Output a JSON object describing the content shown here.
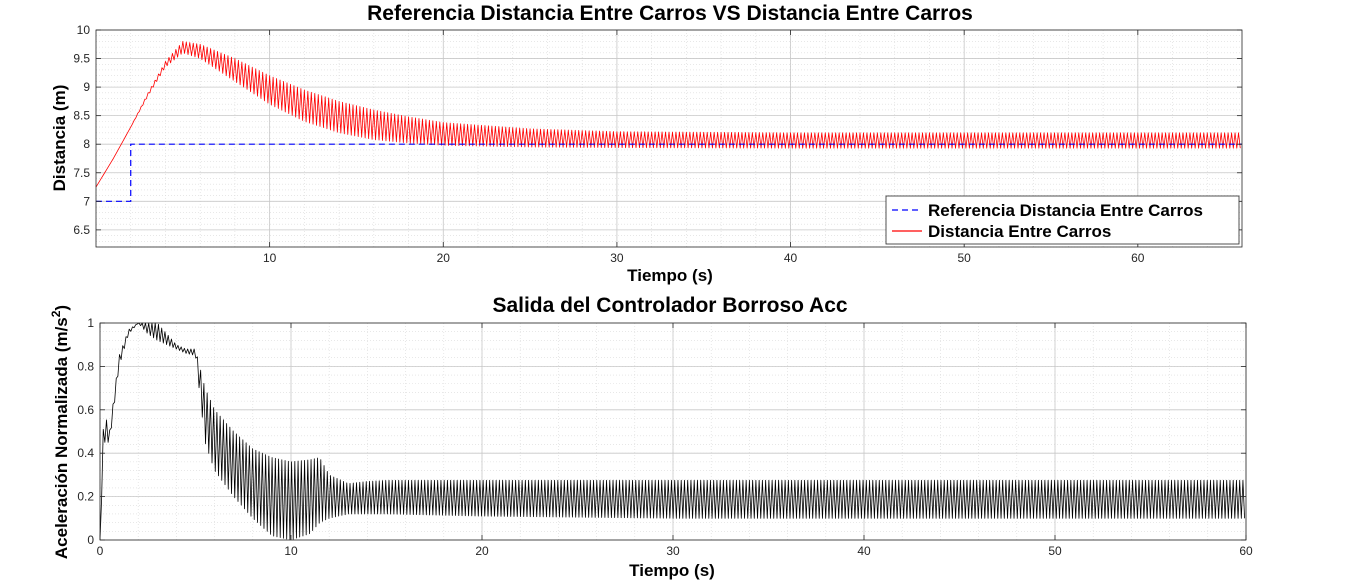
{
  "chart_data": [
    {
      "type": "line",
      "title": "Referencia Distancia Entre Carros VS Distancia Entre Carros",
      "xlabel": "Tiempo (s)",
      "ylabel": "Distancia (m)",
      "xlim": [
        0,
        66
      ],
      "ylim": [
        6.2,
        10
      ],
      "xticks": [
        10,
        20,
        30,
        40,
        50,
        60
      ],
      "yticks": [
        6.5,
        7,
        7.5,
        8,
        8.5,
        9,
        9.5,
        10
      ],
      "xtick_labels": [
        "10",
        "20",
        "30",
        "40",
        "50",
        "60"
      ],
      "ytick_labels": [
        "6.5",
        "7",
        "7.5",
        "8",
        "8.5",
        "9",
        "9.5",
        "10"
      ],
      "grid": true,
      "minor_grid": true,
      "legend": "bottom-right",
      "series": [
        {
          "name": "Referencia Distancia Entre Carros",
          "color": "#0000ff",
          "style": "dashed",
          "x": [
            0,
            2,
            2,
            66
          ],
          "y": [
            7,
            7,
            8,
            8
          ]
        },
        {
          "name": "Distancia Entre Carros",
          "color": "#ff0000",
          "style": "solid-oscillating",
          "x": [
            0,
            1,
            2,
            3,
            4,
            5,
            6,
            8,
            10,
            12,
            14,
            16,
            18,
            20,
            25,
            30,
            40,
            50,
            66
          ],
          "y_upper": [
            7.25,
            7.75,
            8.3,
            8.9,
            9.45,
            9.8,
            9.75,
            9.5,
            9.2,
            8.95,
            8.75,
            8.6,
            8.48,
            8.38,
            8.27,
            8.22,
            8.2,
            8.2,
            8.2
          ],
          "y_lower": [
            7.25,
            7.75,
            8.3,
            8.85,
            9.35,
            9.6,
            9.5,
            9.1,
            8.7,
            8.4,
            8.2,
            8.08,
            8.02,
            7.98,
            7.95,
            7.94,
            7.93,
            7.93,
            7.93
          ]
        }
      ]
    },
    {
      "type": "line",
      "title": "Salida del Controlador Borroso Acc",
      "xlabel": "Tiempo (s)",
      "ylabel_main": "Aceleración Normalizada (m/s",
      "ylabel_sup": "2",
      "ylabel_close": ")",
      "xlim": [
        0,
        60
      ],
      "ylim": [
        0,
        1
      ],
      "xticks": [
        0,
        10,
        20,
        30,
        40,
        50,
        60
      ],
      "yticks": [
        0,
        0.2,
        0.4,
        0.6,
        0.8,
        1
      ],
      "xtick_labels": [
        "0",
        "10",
        "20",
        "30",
        "40",
        "50",
        "60"
      ],
      "ytick_labels": [
        "0",
        "0.2",
        "0.4",
        "0.6",
        "0.8",
        "1"
      ],
      "grid": true,
      "minor_grid": true,
      "series": [
        {
          "color": "#000000",
          "style": "solid-oscillating",
          "x": [
            0,
            0.2,
            0.5,
            1,
            1.5,
            2,
            2.5,
            3,
            3.5,
            4,
            4.5,
            5,
            5.5,
            6,
            7,
            8,
            9,
            10,
            11,
            11.5,
            12,
            13,
            14,
            15,
            20,
            30,
            40,
            50,
            60
          ],
          "y_upper": [
            0,
            0.6,
            0.5,
            0.85,
            0.97,
            1,
            1,
            1,
            0.95,
            0.9,
            0.88,
            0.88,
            0.7,
            0.6,
            0.5,
            0.42,
            0.38,
            0.36,
            0.37,
            0.38,
            0.3,
            0.26,
            0.27,
            0.275,
            0.275,
            0.275,
            0.275,
            0.275,
            0.275
          ],
          "y_lower": [
            0,
            0.45,
            0.45,
            0.8,
            0.95,
            1,
            0.95,
            0.92,
            0.9,
            0.88,
            0.86,
            0.85,
            0.45,
            0.32,
            0.2,
            0.1,
            0.02,
            0,
            0.03,
            0.08,
            0.1,
            0.12,
            0.12,
            0.12,
            0.11,
            0.1,
            0.1,
            0.1,
            0.1
          ]
        }
      ]
    }
  ]
}
